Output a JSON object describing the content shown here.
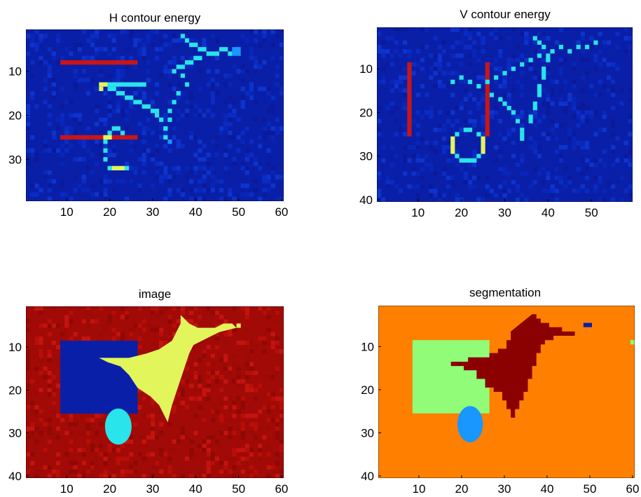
{
  "chart_data": [
    {
      "type": "heatmap",
      "title": "H contour energy",
      "colormap": "jet",
      "xlim": [
        0.5,
        60.5
      ],
      "ylim": [
        0.5,
        39.5
      ],
      "xticks": [
        "10",
        "20",
        "30",
        "40",
        "50",
        "60"
      ],
      "yticks": [
        "10",
        "20",
        "30"
      ],
      "features": [
        {
          "kind": "h-line",
          "value": "high",
          "x": [
            9,
            27
          ],
          "y": 8
        },
        {
          "kind": "h-line",
          "value": "high",
          "x": [
            9,
            27
          ],
          "y": 25
        },
        {
          "kind": "arc",
          "value": "medium",
          "cx": 22,
          "cy": 28,
          "r": 4
        },
        {
          "kind": "star-outline",
          "value": "medium"
        }
      ]
    },
    {
      "type": "heatmap",
      "title": "V contour energy",
      "colormap": "jet",
      "xlim": [
        0.5,
        59.5
      ],
      "ylim": [
        0.5,
        40.5
      ],
      "xticks": [
        "10",
        "20",
        "30",
        "40",
        "50"
      ],
      "yticks": [
        "10",
        "20",
        "30",
        "40"
      ],
      "features": [
        {
          "kind": "v-line",
          "value": "high",
          "x": 8,
          "y": [
            9,
            25
          ]
        },
        {
          "kind": "v-line",
          "value": "high",
          "x": 26,
          "y": [
            9,
            25
          ]
        },
        {
          "kind": "ellipse-outline",
          "value": "medium",
          "cx": 22,
          "cy": 28,
          "rx": 3,
          "ry": 4
        },
        {
          "kind": "star-outline",
          "value": "medium"
        }
      ]
    },
    {
      "type": "heatmap",
      "title": "image",
      "colormap": "jet",
      "xlim": [
        0.5,
        60.5
      ],
      "ylim": [
        0.5,
        40.5
      ],
      "xticks": [
        "10",
        "20",
        "30",
        "40",
        "50",
        "60"
      ],
      "yticks": [
        "10",
        "20",
        "30",
        "40"
      ],
      "features": [
        {
          "kind": "background",
          "value": "dark-red"
        },
        {
          "kind": "rectangle",
          "value": "dark-blue",
          "x": [
            9,
            27
          ],
          "y": [
            9,
            25
          ]
        },
        {
          "kind": "ellipse",
          "value": "cyan",
          "cx": 22,
          "cy": 28,
          "rx": 3,
          "ry": 4
        },
        {
          "kind": "star",
          "value": "yellow"
        }
      ]
    },
    {
      "type": "heatmap",
      "title": "segmentation",
      "colormap": "jet",
      "xlim": [
        0.5,
        60.5
      ],
      "ylim": [
        0.5,
        40.5
      ],
      "xticks": [
        "10",
        "20",
        "30",
        "40",
        "50",
        "60"
      ],
      "yticks": [
        "10",
        "20",
        "30",
        "40"
      ],
      "features": [
        {
          "kind": "background",
          "value": "orange"
        },
        {
          "kind": "rectangle",
          "value": "light-green",
          "x": [
            9,
            27
          ],
          "y": [
            9,
            25
          ]
        },
        {
          "kind": "ellipse",
          "value": "light-blue",
          "cx": 22,
          "cy": 28,
          "rx": 3,
          "ry": 4
        },
        {
          "kind": "star",
          "value": "dark-red"
        }
      ]
    }
  ],
  "colors": {
    "navy": "#0a1fa8",
    "dark_red": "#a10a06",
    "orange": "#ff8000",
    "light_green": "#90fc78",
    "yellow": "#e2f55b",
    "cyan": "#29e4ea",
    "red": "#c91515",
    "sky": "#1a96ff"
  }
}
